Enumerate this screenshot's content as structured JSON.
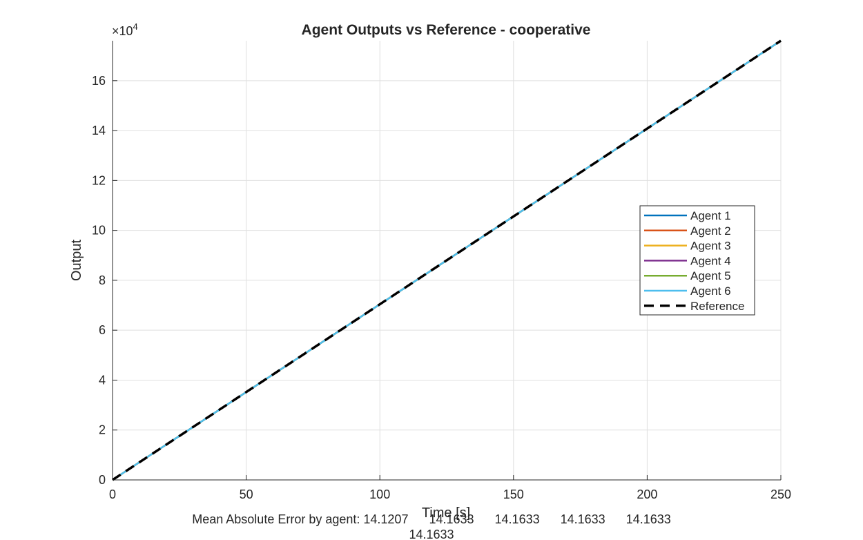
{
  "chart_data": {
    "type": "line",
    "title": "Agent Outputs vs Reference - cooperative",
    "xlabel": "Time [s]",
    "ylabel": "Output",
    "y_multiplier_label": "×10",
    "y_multiplier_exponent": "4",
    "xlim": [
      0,
      250
    ],
    "ylim": [
      0,
      17.6
    ],
    "x_ticks": [
      0,
      50,
      100,
      150,
      200,
      250
    ],
    "y_ticks": [
      0,
      2,
      4,
      6,
      8,
      10,
      12,
      14,
      16
    ],
    "grid": true,
    "legend_placement": "right",
    "series": [
      {
        "name": "Agent 1",
        "color": "#0072BD",
        "style": "solid",
        "x": [
          0,
          250
        ],
        "y": [
          0,
          17.6
        ]
      },
      {
        "name": "Agent 2",
        "color": "#D95319",
        "style": "solid",
        "x": [
          0,
          250
        ],
        "y": [
          0,
          17.6
        ]
      },
      {
        "name": "Agent 3",
        "color": "#EDB120",
        "style": "solid",
        "x": [
          0,
          250
        ],
        "y": [
          0,
          17.6
        ]
      },
      {
        "name": "Agent 4",
        "color": "#7E2F8E",
        "style": "solid",
        "x": [
          0,
          250
        ],
        "y": [
          0,
          17.6
        ]
      },
      {
        "name": "Agent 5",
        "color": "#77AC30",
        "style": "solid",
        "x": [
          0,
          250
        ],
        "y": [
          0,
          17.6
        ]
      },
      {
        "name": "Agent 6",
        "color": "#4DBEEE",
        "style": "solid",
        "x": [
          0,
          250
        ],
        "y": [
          0,
          17.6
        ]
      },
      {
        "name": "Reference",
        "color": "#000000",
        "style": "dashed",
        "x": [
          0,
          250
        ],
        "y": [
          0,
          17.6
        ]
      }
    ],
    "annotation": {
      "line1": "Mean Absolute Error by agent: 14.1207      14.1633      14.1633      14.1633      14.1633",
      "line2": "14.1633"
    }
  }
}
